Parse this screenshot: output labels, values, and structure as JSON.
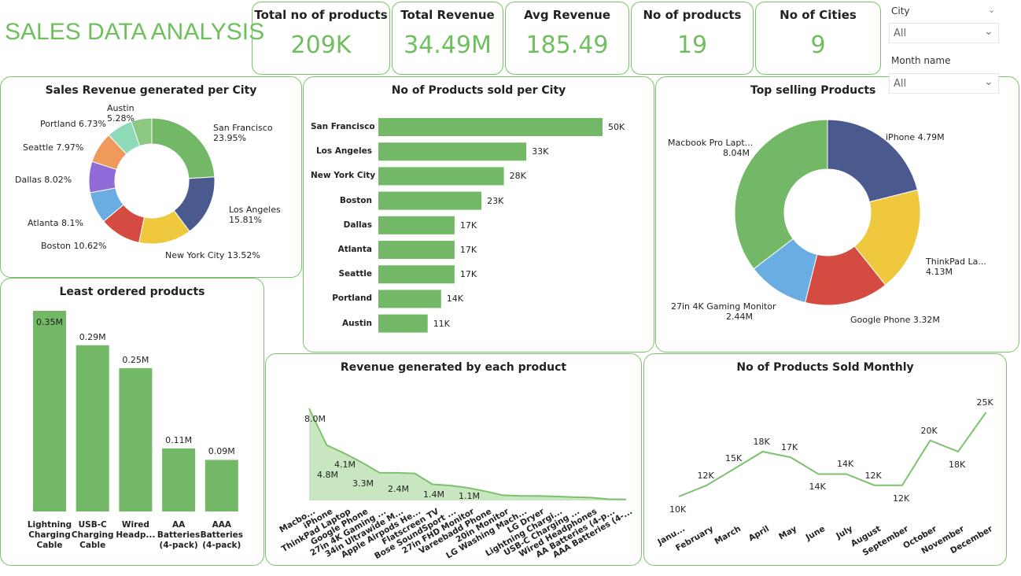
{
  "title": "SALES DATA ANALYSIS",
  "kpis": [
    {
      "label": "Total no of products",
      "value": "209K"
    },
    {
      "label": "Total Revenue",
      "value": "34.49M"
    },
    {
      "label": "Avg Revenue",
      "value": "185.49"
    },
    {
      "label": "No of products",
      "value": "19"
    },
    {
      "label": "No of Cities",
      "value": "9"
    }
  ],
  "filters": {
    "city_label": "City",
    "city_value": "All",
    "month_label": "Month name",
    "month_value": "All"
  },
  "colors": {
    "accent": "#72b866",
    "border": "#7cc26e"
  },
  "chart_data": [
    {
      "id": "city-revenue",
      "type": "pie",
      "title": "Sales Revenue generated per City",
      "donut": true,
      "categories": [
        "San Francisco",
        "Los Angeles",
        "New York City",
        "Boston",
        "Atlanta",
        "Dallas",
        "Seattle",
        "Portland",
        "Austin"
      ],
      "values": [
        23.95,
        15.81,
        13.52,
        10.62,
        8.1,
        8.02,
        7.97,
        6.73,
        5.28
      ],
      "unit": "%",
      "colors": [
        "#72b866",
        "#4a5a8e",
        "#f0c83e",
        "#d44b42",
        "#6aade3",
        "#8e6bd6",
        "#ef9a5a",
        "#8ddbb8",
        "#8cc881"
      ]
    },
    {
      "id": "products-per-city",
      "type": "bar",
      "orientation": "horizontal",
      "title": "No of Products sold per City",
      "categories": [
        "San Francisco",
        "Los Angeles",
        "New York City",
        "Boston",
        "Dallas",
        "Atlanta",
        "Seattle",
        "Portland",
        "Austin"
      ],
      "values": [
        50,
        33,
        28,
        23,
        17,
        17,
        17,
        14,
        11
      ],
      "value_labels": [
        "50K",
        "33K",
        "28K",
        "23K",
        "17K",
        "17K",
        "17K",
        "14K",
        "11K"
      ]
    },
    {
      "id": "top-products",
      "type": "pie",
      "title": "Top selling Products",
      "donut": true,
      "categories": [
        "iPhone",
        "ThinkPad La...",
        "Google Phone",
        "27in 4K Gaming Monitor",
        "Macbook Pro Lapt..."
      ],
      "values": [
        4.79,
        4.13,
        3.32,
        2.44,
        8.04
      ],
      "unit": "M",
      "colors": [
        "#4a5a8e",
        "#f0c83e",
        "#d44b42",
        "#6aade3",
        "#72b866"
      ]
    },
    {
      "id": "least-ordered",
      "type": "bar",
      "orientation": "vertical",
      "title": "Least ordered products",
      "categories": [
        "Lightning Charging Cable",
        "USB-C Charging Cable",
        "Wired Headp...",
        "AA Batteries (4-pack)",
        "AAA Batteries (4-pack)"
      ],
      "values": [
        0.35,
        0.29,
        0.25,
        0.11,
        0.09
      ],
      "value_labels": [
        "0.35M",
        "0.29M",
        "0.25M",
        "0.11M",
        "0.09M"
      ]
    },
    {
      "id": "revenue-per-product",
      "type": "area",
      "title": "Revenue generated by each product",
      "categories": [
        "Macbo...",
        "iPhone",
        "ThinkPad Laptop",
        "Google Phone",
        "27in 4K Gaming ...",
        "34in Ultrawide M...",
        "Apple Airpods He...",
        "Flatscreen TV",
        "Bose SoundSport ...",
        "27in FHD Monitor",
        "Vareebadd Phone",
        "20in Monitor",
        "LG Washing Mach...",
        "LG Dryer",
        "Lightning Chargi...",
        "USB-C Charging ...",
        "Wired Headphones",
        "AA Batteries (4-p...",
        "AAA Batteries (4-..."
      ],
      "values": [
        8.0,
        4.8,
        4.1,
        3.3,
        2.4,
        2.4,
        2.35,
        1.4,
        1.3,
        1.1,
        0.8,
        0.45,
        0.4,
        0.39,
        0.35,
        0.29,
        0.25,
        0.11,
        0.09
      ],
      "unit": "M",
      "data_labels": {
        "0": "8.0M",
        "1": "4.8M",
        "2": "4.1M",
        "3": "3.3M",
        "5": "2.4M",
        "7": "1.4M",
        "9": "1.1M"
      }
    },
    {
      "id": "monthly-products",
      "type": "line",
      "title": "No of Products Sold Monthly",
      "categories": [
        "Janu...",
        "February",
        "March",
        "April",
        "May",
        "June",
        "July",
        "August",
        "September",
        "October",
        "November",
        "December"
      ],
      "values": [
        10,
        12,
        15,
        18,
        17,
        14,
        14,
        12,
        12,
        20,
        18,
        25
      ],
      "value_labels": [
        "10K",
        "12K",
        "15K",
        "18K",
        "17K",
        "14K",
        "14K",
        "12K",
        "12K",
        "20K",
        "18K",
        "25K"
      ]
    }
  ]
}
